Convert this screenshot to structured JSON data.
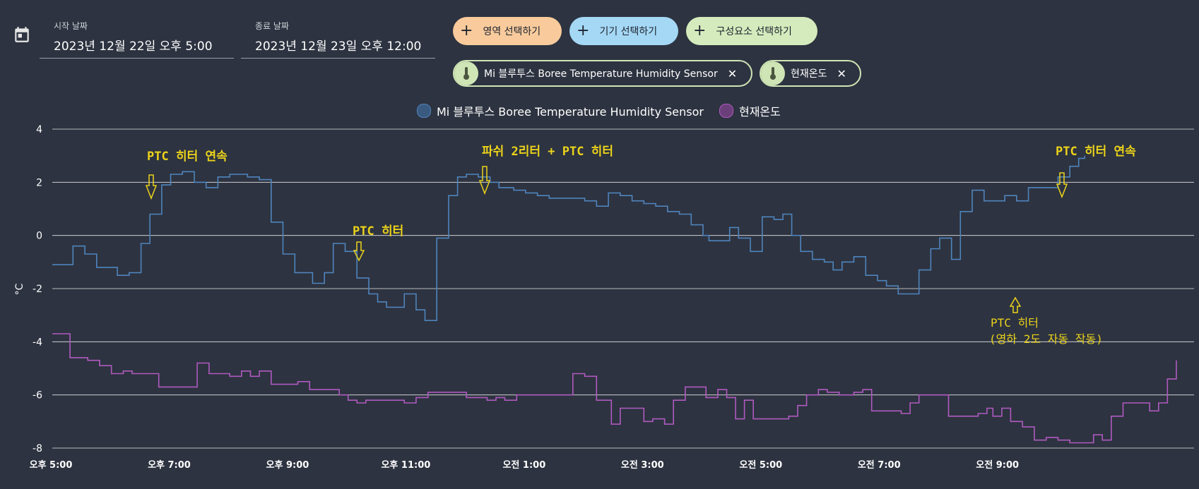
{
  "header": {
    "start_label": "시작 날짜",
    "start_value": "2023년 12월 22일 오후 5:00",
    "end_label": "종료 날짜",
    "end_value": "2023년 12월 23일 오후 12:00",
    "area_button": "영역 선택하기",
    "device_button": "기기 선택하기",
    "component_button": "구성요소 선택하기",
    "chips": [
      {
        "label": "Mi 블루투스 Boree Temperature Humidity Sensor"
      },
      {
        "label": "현재온도"
      }
    ]
  },
  "colors": {
    "background": "#2d3340",
    "series_sensor": "#4f84bd",
    "series_current": "#b05ac0",
    "annotation": "#ecd31a",
    "area_button": "#f9cb9c",
    "device_button": "#a4d8f5",
    "component_button": "#d5ebbd"
  },
  "chart_data": {
    "type": "line",
    "step": true,
    "ylabel": "°C",
    "ylim": [
      -8,
      4
    ],
    "yticks": [
      "4",
      "2",
      "0",
      "-2",
      "-4",
      "-6",
      "-8"
    ],
    "ytick_values": [
      4,
      2,
      0,
      -2,
      -4,
      -6,
      -8
    ],
    "xlim_hours": [
      17,
      36
    ],
    "xticks": [
      {
        "h": 17,
        "label": "오후 5:00"
      },
      {
        "h": 19,
        "label": "오후 7:00"
      },
      {
        "h": 21,
        "label": "오후 9:00"
      },
      {
        "h": 23,
        "label": "오후 11:00"
      },
      {
        "h": 25,
        "label": "오전 1:00"
      },
      {
        "h": 27,
        "label": "오전 3:00"
      },
      {
        "h": 29,
        "label": "오전 5:00"
      },
      {
        "h": 31,
        "label": "오전 7:00"
      },
      {
        "h": 33,
        "label": "오전 9:00"
      }
    ],
    "grid": true,
    "legend": "top",
    "series": [
      {
        "name": "Mi 블루투스 Boree Temperature Humidity Sensor",
        "points": [
          [
            17,
            -1.1
          ],
          [
            17.35,
            -0.4
          ],
          [
            17.55,
            -0.7
          ],
          [
            17.75,
            -1.2
          ],
          [
            18.1,
            -1.5
          ],
          [
            18.3,
            -1.4
          ],
          [
            18.5,
            -0.3
          ],
          [
            18.65,
            0.8
          ],
          [
            18.85,
            1.9
          ],
          [
            19.0,
            2.3
          ],
          [
            19.2,
            2.4
          ],
          [
            19.4,
            2.0
          ],
          [
            19.6,
            1.8
          ],
          [
            19.8,
            2.2
          ],
          [
            20.0,
            2.3
          ],
          [
            20.3,
            2.2
          ],
          [
            20.5,
            2.1
          ],
          [
            20.7,
            0.5
          ],
          [
            20.9,
            -0.7
          ],
          [
            21.1,
            -1.4
          ],
          [
            21.3,
            -1.4
          ],
          [
            21.4,
            -1.8
          ],
          [
            21.6,
            -1.4
          ],
          [
            21.75,
            -0.3
          ],
          [
            21.95,
            -0.6
          ],
          [
            22.15,
            -1.6
          ],
          [
            22.35,
            -2.2
          ],
          [
            22.5,
            -2.5
          ],
          [
            22.65,
            -2.7
          ],
          [
            22.95,
            -2.2
          ],
          [
            23.15,
            -2.8
          ],
          [
            23.3,
            -3.2
          ],
          [
            23.5,
            -0.1
          ],
          [
            23.7,
            1.5
          ],
          [
            23.85,
            2.2
          ],
          [
            24.0,
            2.3
          ],
          [
            24.2,
            2.2
          ],
          [
            24.4,
            2.0
          ],
          [
            24.55,
            1.8
          ],
          [
            24.8,
            1.7
          ],
          [
            25.0,
            1.6
          ],
          [
            25.2,
            1.5
          ],
          [
            25.4,
            1.4
          ],
          [
            25.75,
            1.4
          ],
          [
            26.0,
            1.3
          ],
          [
            26.2,
            1.1
          ],
          [
            26.4,
            1.6
          ],
          [
            26.6,
            1.5
          ],
          [
            26.8,
            1.3
          ],
          [
            27.0,
            1.2
          ],
          [
            27.2,
            1.1
          ],
          [
            27.4,
            0.9
          ],
          [
            27.6,
            0.8
          ],
          [
            27.8,
            0.4
          ],
          [
            28.0,
            0.0
          ],
          [
            28.1,
            -0.2
          ],
          [
            28.4,
            -0.2
          ],
          [
            28.45,
            0.3
          ],
          [
            28.6,
            -0.1
          ],
          [
            28.8,
            -0.6
          ],
          [
            29.0,
            0.7
          ],
          [
            29.2,
            0.6
          ],
          [
            29.35,
            0.8
          ],
          [
            29.5,
            0.0
          ],
          [
            29.65,
            -0.6
          ],
          [
            29.85,
            -0.9
          ],
          [
            30.05,
            -1.0
          ],
          [
            30.2,
            -1.3
          ],
          [
            30.35,
            -1.0
          ],
          [
            30.55,
            -0.8
          ],
          [
            30.75,
            -1.5
          ],
          [
            30.95,
            -1.7
          ],
          [
            31.1,
            -1.9
          ],
          [
            31.3,
            -2.2
          ],
          [
            31.65,
            -1.3
          ],
          [
            31.85,
            -0.5
          ],
          [
            32.0,
            -0.1
          ],
          [
            32.2,
            -0.9
          ],
          [
            32.35,
            0.9
          ],
          [
            32.55,
            1.7
          ],
          [
            32.75,
            1.3
          ],
          [
            33.1,
            1.5
          ],
          [
            33.3,
            1.3
          ],
          [
            33.5,
            1.8
          ],
          [
            33.7,
            1.8
          ],
          [
            33.9,
            1.8
          ],
          [
            34.0,
            2.2
          ],
          [
            34.2,
            2.6
          ],
          [
            34.35,
            2.9
          ],
          [
            34.45,
            3.0
          ]
        ]
      },
      {
        "name": "현재온도",
        "points": [
          [
            17,
            -3.7
          ],
          [
            17.3,
            -4.6
          ],
          [
            17.6,
            -4.7
          ],
          [
            17.8,
            -4.9
          ],
          [
            18.0,
            -5.2
          ],
          [
            18.2,
            -5.1
          ],
          [
            18.35,
            -5.2
          ],
          [
            18.6,
            -5.2
          ],
          [
            18.8,
            -5.7
          ],
          [
            19.3,
            -5.7
          ],
          [
            19.45,
            -4.8
          ],
          [
            19.65,
            -5.2
          ],
          [
            20.0,
            -5.3
          ],
          [
            20.2,
            -5.1
          ],
          [
            20.35,
            -5.3
          ],
          [
            20.5,
            -5.1
          ],
          [
            20.7,
            -5.6
          ],
          [
            21.0,
            -5.6
          ],
          [
            21.15,
            -5.5
          ],
          [
            21.35,
            -5.8
          ],
          [
            21.6,
            -5.8
          ],
          [
            21.85,
            -6.0
          ],
          [
            22.0,
            -6.2
          ],
          [
            22.15,
            -6.3
          ],
          [
            22.3,
            -6.2
          ],
          [
            22.6,
            -6.2
          ],
          [
            22.95,
            -6.3
          ],
          [
            23.15,
            -6.1
          ],
          [
            23.35,
            -5.9
          ],
          [
            23.85,
            -5.9
          ],
          [
            24.0,
            -6.1
          ],
          [
            24.2,
            -6.1
          ],
          [
            24.35,
            -6.2
          ],
          [
            24.5,
            -6.1
          ],
          [
            24.65,
            -6.2
          ],
          [
            24.85,
            -6.0
          ],
          [
            25.55,
            -6.0
          ],
          [
            25.8,
            -5.2
          ],
          [
            26.0,
            -5.3
          ],
          [
            26.2,
            -6.2
          ],
          [
            26.45,
            -7.1
          ],
          [
            26.6,
            -6.5
          ],
          [
            26.85,
            -6.5
          ],
          [
            27.0,
            -7.0
          ],
          [
            27.15,
            -6.9
          ],
          [
            27.35,
            -7.1
          ],
          [
            27.5,
            -6.2
          ],
          [
            27.7,
            -5.7
          ],
          [
            27.9,
            -5.7
          ],
          [
            28.05,
            -6.1
          ],
          [
            28.25,
            -5.8
          ],
          [
            28.4,
            -6.1
          ],
          [
            28.55,
            -6.9
          ],
          [
            28.7,
            -6.2
          ],
          [
            28.85,
            -6.9
          ],
          [
            29.2,
            -6.9
          ],
          [
            29.45,
            -6.8
          ],
          [
            29.6,
            -6.4
          ],
          [
            29.75,
            -6.0
          ],
          [
            29.95,
            -5.8
          ],
          [
            30.1,
            -5.9
          ],
          [
            30.3,
            -6.0
          ],
          [
            30.55,
            -5.9
          ],
          [
            30.7,
            -5.8
          ],
          [
            30.85,
            -6.6
          ],
          [
            31.15,
            -6.6
          ],
          [
            31.35,
            -6.7
          ],
          [
            31.5,
            -6.3
          ],
          [
            31.65,
            -6.0
          ],
          [
            31.95,
            -6.0
          ],
          [
            32.15,
            -6.8
          ],
          [
            32.65,
            -6.7
          ],
          [
            32.8,
            -6.5
          ],
          [
            32.9,
            -6.8
          ],
          [
            33.05,
            -6.5
          ],
          [
            33.2,
            -7.0
          ],
          [
            33.4,
            -7.2
          ],
          [
            33.6,
            -7.7
          ],
          [
            33.8,
            -7.6
          ],
          [
            34.0,
            -7.7
          ],
          [
            34.2,
            -7.8
          ],
          [
            34.4,
            -7.8
          ],
          [
            34.6,
            -7.5
          ],
          [
            34.75,
            -7.7
          ],
          [
            34.9,
            -6.8
          ],
          [
            35.1,
            -6.3
          ],
          [
            35.3,
            -6.3
          ],
          [
            35.55,
            -6.6
          ],
          [
            35.7,
            -6.3
          ],
          [
            35.85,
            -5.4
          ],
          [
            36.0,
            -4.7
          ]
        ]
      }
    ],
    "annotations": [
      {
        "text": "PTC 히터 연속"
      },
      {
        "text": "PTC 히터"
      },
      {
        "text": "파쉬 2리터 + PTC 히터"
      },
      {
        "text": "PTC 히터 연속"
      },
      {
        "text": "PTC 히터"
      },
      {
        "text": "(영하 2도 자동 작동)"
      }
    ]
  }
}
